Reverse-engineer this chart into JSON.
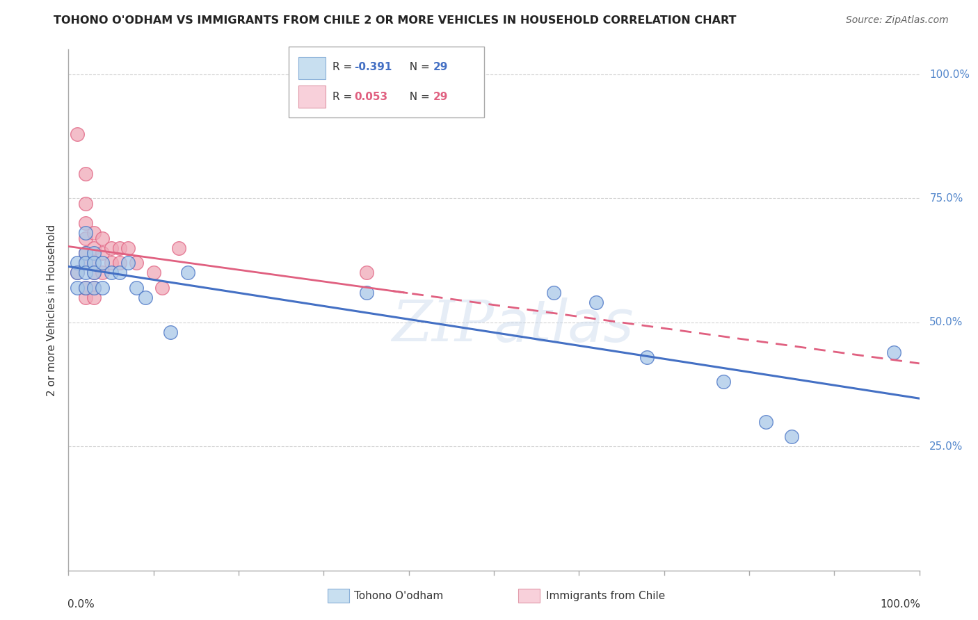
{
  "title": "TOHONO O'ODHAM VS IMMIGRANTS FROM CHILE 2 OR MORE VEHICLES IN HOUSEHOLD CORRELATION CHART",
  "source": "Source: ZipAtlas.com",
  "ylabel": "2 or more Vehicles in Household",
  "watermark": "ZIPatlas",
  "blue_R": -0.391,
  "blue_N": 29,
  "pink_R": 0.053,
  "pink_N": 29,
  "blue_color": "#a8c8e8",
  "pink_color": "#f0a8b8",
  "blue_line_color": "#4470c4",
  "pink_line_color": "#e06080",
  "legend_blue_fill": "#c8dff0",
  "legend_pink_fill": "#f8d0da",
  "background_color": "#ffffff",
  "grid_color": "#c8c8c8",
  "title_color": "#222222",
  "right_label_color": "#5588cc",
  "blue_x": [
    0.01,
    0.01,
    0.01,
    0.02,
    0.02,
    0.02,
    0.02,
    0.02,
    0.02,
    0.03,
    0.03,
    0.03,
    0.03,
    0.04,
    0.04,
    0.05,
    0.06,
    0.07,
    0.08,
    0.09,
    0.12,
    0.14,
    0.35,
    0.57,
    0.62,
    0.68,
    0.77,
    0.82,
    0.97
  ],
  "blue_y": [
    0.62,
    0.6,
    0.57,
    0.68,
    0.64,
    0.62,
    0.6,
    0.57,
    0.55,
    0.64,
    0.62,
    0.6,
    0.57,
    0.62,
    0.57,
    0.6,
    0.6,
    0.62,
    0.57,
    0.55,
    0.48,
    0.6,
    0.56,
    0.56,
    0.54,
    0.43,
    0.38,
    0.3,
    0.44
  ],
  "pink_x": [
    0.01,
    0.01,
    0.02,
    0.02,
    0.02,
    0.02,
    0.02,
    0.02,
    0.03,
    0.03,
    0.03,
    0.03,
    0.04,
    0.04,
    0.04,
    0.05,
    0.05,
    0.06,
    0.06,
    0.07,
    0.08,
    0.1,
    0.11,
    0.13,
    0.35,
    0.02,
    0.02,
    0.03,
    0.03
  ],
  "pink_y": [
    0.88,
    0.6,
    0.8,
    0.74,
    0.7,
    0.67,
    0.64,
    0.62,
    0.68,
    0.65,
    0.62,
    0.6,
    0.67,
    0.64,
    0.6,
    0.65,
    0.62,
    0.65,
    0.62,
    0.65,
    0.62,
    0.6,
    0.57,
    0.65,
    0.6,
    0.57,
    0.55,
    0.57,
    0.55
  ],
  "xmin": 0.0,
  "xmax": 1.0,
  "ymin": 0.0,
  "ymax": 1.05
}
